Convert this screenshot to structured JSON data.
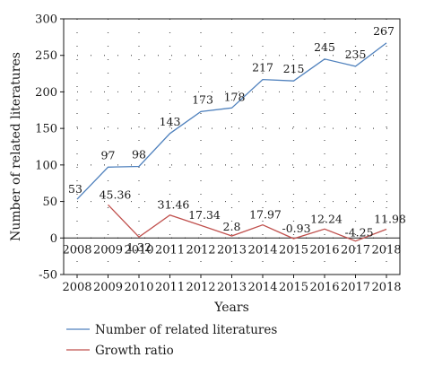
{
  "chart_data": {
    "type": "line",
    "title": "",
    "xlabel": "Years",
    "ylabel": "Number of related literatures",
    "ylim": [
      -50,
      300
    ],
    "yticks": [
      300,
      250,
      200,
      150,
      100,
      50,
      0,
      -50
    ],
    "categories": [
      "2008",
      "2009",
      "2010",
      "2011",
      "2012",
      "2013",
      "2014",
      "2015",
      "2016",
      "2017",
      "2018"
    ],
    "zero_row_labels": [
      "2008",
      "2009",
      "2010",
      "2011",
      "2012",
      "2013",
      "2014",
      "2015",
      "2016",
      "2017",
      "2018"
    ],
    "grid": "dotted",
    "legend_position": "bottom",
    "series": [
      {
        "name": "Number of related literatures",
        "color": "#4f81bd",
        "values": [
          53,
          97,
          98,
          143,
          173,
          178,
          217,
          215,
          245,
          235,
          267
        ],
        "labels": [
          "53",
          "97",
          "98",
          "143",
          "173",
          "178",
          "217",
          "215",
          "245",
          "235",
          "267"
        ]
      },
      {
        "name": "Growth ratio",
        "color": "#c0504d",
        "values": [
          null,
          45.36,
          1.32,
          31.46,
          17.34,
          2.8,
          17.97,
          -0.93,
          12.24,
          -4.25,
          11.98
        ],
        "labels": [
          null,
          "45.36",
          "1.32",
          "31.46",
          "17.34",
          "2.8",
          "17.97",
          "-0.93",
          "12.24",
          "-4.25",
          "11.98"
        ]
      }
    ]
  }
}
